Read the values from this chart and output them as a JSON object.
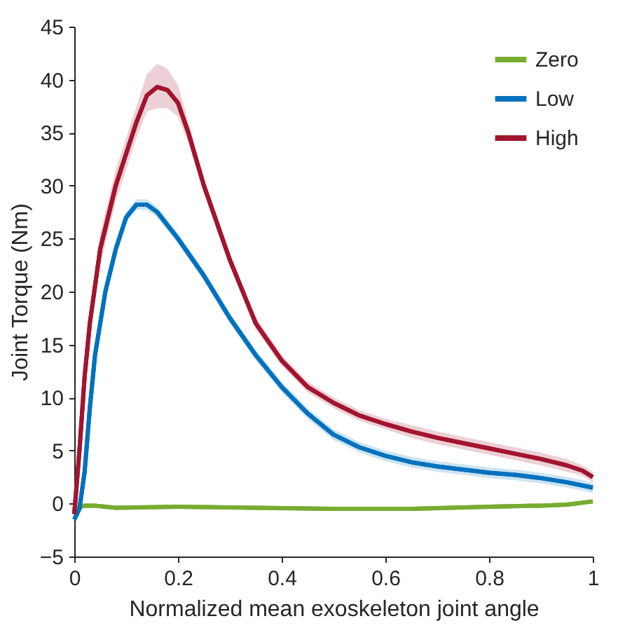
{
  "chart_data": {
    "type": "line",
    "xlabel": "Normalized mean exoskeleton joint angle",
    "ylabel": "Joint Torque (Nm)",
    "xlim": [
      0,
      1
    ],
    "xticks": [
      0,
      0.2,
      0.4,
      0.6,
      0.8,
      1
    ],
    "ylim": [
      -5,
      45
    ],
    "yticks": [
      -5,
      0,
      5,
      10,
      15,
      20,
      25,
      30,
      35,
      40,
      45
    ],
    "grid": false,
    "legend": "top right",
    "marker": "none",
    "line_style": "solid",
    "series": [
      {
        "name": "Zero",
        "color": "#77ac30",
        "x": [
          0,
          0.02,
          0.04,
          0.08,
          0.2,
          0.35,
          0.5,
          0.65,
          0.8,
          0.9,
          0.95,
          1.0
        ],
        "values": [
          -0.5,
          -0.2,
          -0.2,
          -0.4,
          -0.3,
          -0.4,
          -0.5,
          -0.5,
          -0.3,
          -0.2,
          -0.1,
          0.2
        ]
      },
      {
        "name": "Low",
        "color": "#0072bd",
        "x": [
          0,
          0.01,
          0.02,
          0.03,
          0.04,
          0.05,
          0.06,
          0.08,
          0.1,
          0.12,
          0.14,
          0.16,
          0.2,
          0.25,
          0.3,
          0.35,
          0.4,
          0.45,
          0.5,
          0.55,
          0.6,
          0.65,
          0.7,
          0.75,
          0.8,
          0.85,
          0.9,
          0.95,
          1.0
        ],
        "values": [
          -1.5,
          -0.5,
          3,
          9,
          14,
          17,
          20,
          24,
          27,
          28.2,
          28.2,
          27.5,
          25,
          21.5,
          17.5,
          14,
          11,
          8.5,
          6.5,
          5.3,
          4.5,
          3.9,
          3.5,
          3.2,
          2.9,
          2.7,
          2.4,
          2.0,
          1.5
        ],
        "lower": [
          -2,
          -1,
          2.5,
          8.5,
          13.5,
          16.5,
          19.5,
          23.5,
          26.5,
          27.7,
          27.7,
          27,
          24.5,
          21,
          17,
          13.5,
          10.5,
          8,
          6,
          4.8,
          4,
          3.4,
          3,
          2.7,
          2.4,
          2.2,
          1.9,
          1.5,
          1
        ],
        "upper": [
          -1,
          0,
          3.5,
          9.5,
          14.5,
          17.5,
          20.5,
          24.5,
          27.5,
          28.7,
          28.7,
          28,
          25.5,
          22,
          18,
          14.5,
          11.5,
          9,
          7,
          5.8,
          5,
          4.4,
          4,
          3.7,
          3.4,
          3.2,
          2.9,
          2.5,
          2
        ]
      },
      {
        "name": "High",
        "color": "#a2142f",
        "x": [
          0,
          0.01,
          0.02,
          0.03,
          0.05,
          0.08,
          0.1,
          0.12,
          0.14,
          0.16,
          0.18,
          0.2,
          0.22,
          0.25,
          0.3,
          0.35,
          0.4,
          0.45,
          0.5,
          0.55,
          0.6,
          0.65,
          0.7,
          0.75,
          0.8,
          0.85,
          0.9,
          0.95,
          0.98,
          1.0
        ],
        "values": [
          -1,
          5,
          12,
          17,
          24,
          30,
          33,
          36,
          38.5,
          39.3,
          39,
          37.8,
          35,
          30,
          23,
          17,
          13.5,
          11,
          9.5,
          8.3,
          7.5,
          6.8,
          6.2,
          5.7,
          5.2,
          4.7,
          4.2,
          3.6,
          3.1,
          2.5
        ],
        "lower": [
          -1.5,
          4.5,
          11,
          16,
          22.5,
          28.5,
          31.5,
          34.5,
          37,
          37.3,
          37.3,
          36.5,
          34,
          29.3,
          22.4,
          16.4,
          13,
          10.5,
          9,
          7.8,
          7,
          6.2,
          5.6,
          5.1,
          4.6,
          4.1,
          3.6,
          3,
          2.6,
          2
        ],
        "upper": [
          -0.5,
          5.5,
          13,
          18,
          25.5,
          31.5,
          34.5,
          37.5,
          40.5,
          41.5,
          41,
          39.5,
          36,
          30.7,
          23.6,
          17.6,
          14,
          11.5,
          10,
          8.8,
          8,
          7.4,
          6.8,
          6.3,
          5.8,
          5.3,
          4.8,
          4.2,
          3.6,
          3
        ]
      }
    ]
  }
}
